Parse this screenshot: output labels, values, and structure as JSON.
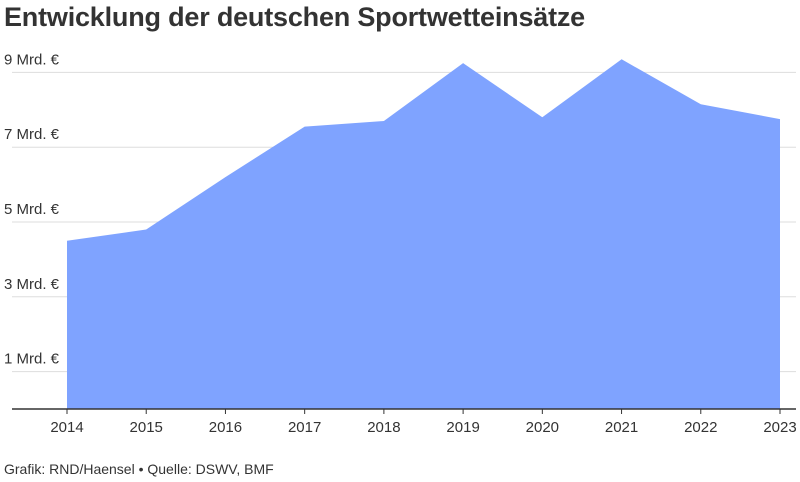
{
  "chart_data": {
    "type": "area",
    "title": "Entwicklung der deutschen Sportwetteinsätze",
    "x": [
      "2014",
      "2015",
      "2016",
      "2017",
      "2018",
      "2019",
      "2020",
      "2021",
      "2022",
      "2023"
    ],
    "series": [
      {
        "values": [
          4.5,
          4.8,
          6.2,
          7.55,
          7.7,
          9.25,
          7.8,
          9.35,
          8.15,
          7.75
        ]
      }
    ],
    "y_ticks": [
      {
        "value": 1,
        "label": "1 Mrd. €"
      },
      {
        "value": 3,
        "label": "3 Mrd. €"
      },
      {
        "value": 5,
        "label": "5 Mrd. €"
      },
      {
        "value": 7,
        "label": "7 Mrd. €"
      },
      {
        "value": 9,
        "label": "9 Mrd. €"
      }
    ],
    "ylim": [
      0,
      10
    ],
    "grid": true,
    "xlabel": "",
    "ylabel": "",
    "fill_color": "#7fa3ff",
    "grid_color": "#dddddd",
    "axis_color": "#333333"
  },
  "footer": "Grafik: RND/Haensel • Quelle: DSWV, BMF"
}
